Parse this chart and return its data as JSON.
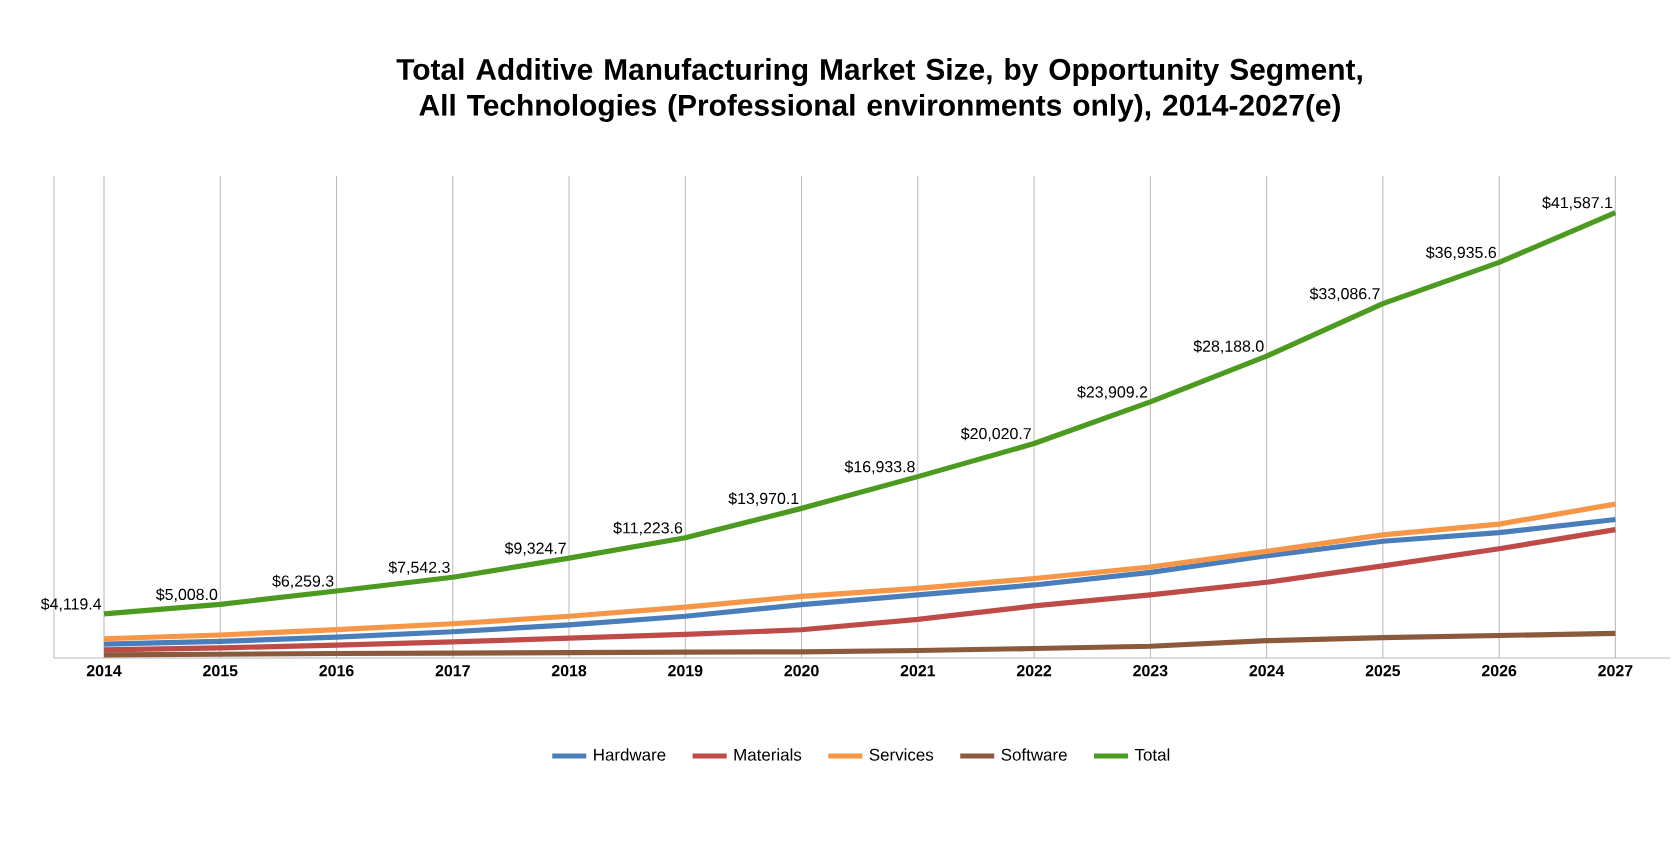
{
  "chart_data": {
    "type": "line",
    "title": "Total Additive Manufacturing Market Size, by Opportunity Segment, All Technologies (Professional environments only), 2014-2027(e)",
    "categories": [
      "2014",
      "2015",
      "2016",
      "2017",
      "2018",
      "2019",
      "2020",
      "2021",
      "2022",
      "2023",
      "2024",
      "2025",
      "2026",
      "2027"
    ],
    "series": [
      {
        "name": "Hardware",
        "color": "#4a7ebb",
        "values": [
          1300,
          1550,
          1950,
          2450,
          3100,
          3900,
          4990,
          5900,
          6820,
          8000,
          9550,
          10900,
          11700,
          12930
        ]
      },
      {
        "name": "Materials",
        "color": "#be4b48",
        "values": [
          760,
          950,
          1200,
          1500,
          1850,
          2200,
          2640,
          3600,
          4860,
          5900,
          7070,
          8600,
          10200,
          11990
        ]
      },
      {
        "name": "Services",
        "color": "#f79646",
        "values": [
          1800,
          2150,
          2650,
          3200,
          3900,
          4750,
          5760,
          6500,
          7420,
          8500,
          9950,
          11500,
          12500,
          14370
        ]
      },
      {
        "name": "Software",
        "color": "#8b5a3c",
        "values": [
          300,
          350,
          420,
          450,
          500,
          550,
          580,
          700,
          890,
          1100,
          1615,
          1900,
          2100,
          2300
        ]
      },
      {
        "name": "Total",
        "color": "#4c9a1f",
        "values": [
          4119.4,
          5008.0,
          6259.3,
          7542.3,
          9324.7,
          11223.6,
          13970.1,
          16933.8,
          20020.7,
          23909.2,
          28188.0,
          33086.7,
          36935.6,
          41587.1
        ],
        "value_labels": [
          "$4,119.4",
          "$5,008.0",
          "$6,259.3",
          "$7,542.3",
          "$9,324.7",
          "$11,223.6",
          "$13,970.1",
          "$16,933.8",
          "$20,020.7",
          "$23,909.2",
          "$28,188.0",
          "$33,086.7",
          "$36,935.6",
          "$41,587.1"
        ]
      }
    ],
    "ylim": [
      0,
      45000
    ],
    "tick_labels": "x",
    "grid": "x",
    "legend": "bottom",
    "marker": "none",
    "line_style": "solid"
  }
}
